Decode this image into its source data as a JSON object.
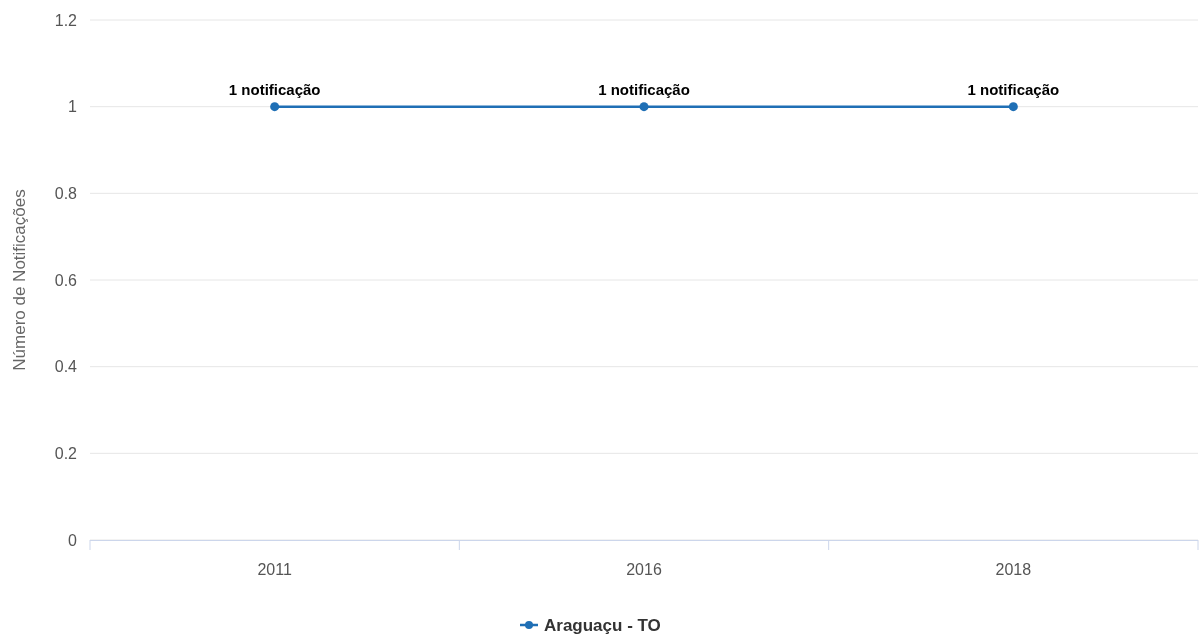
{
  "chart_data": {
    "type": "line",
    "ylabel": "Número de Notificações",
    "categories": [
      "2011",
      "2016",
      "2018"
    ],
    "series": [
      {
        "name": "Araguaçu - TO",
        "color": "#1f6fb5",
        "values": [
          1,
          1,
          1
        ],
        "value_labels": [
          "1 notificação",
          "1 notificação",
          "1 notificação"
        ]
      }
    ],
    "ylim": [
      0,
      1.2
    ],
    "yticks": [
      0,
      0.2,
      0.4,
      0.6,
      0.8,
      1,
      1.2
    ],
    "grid": "y",
    "legend": "bottom",
    "marker": "circle",
    "line_style": "solid"
  }
}
